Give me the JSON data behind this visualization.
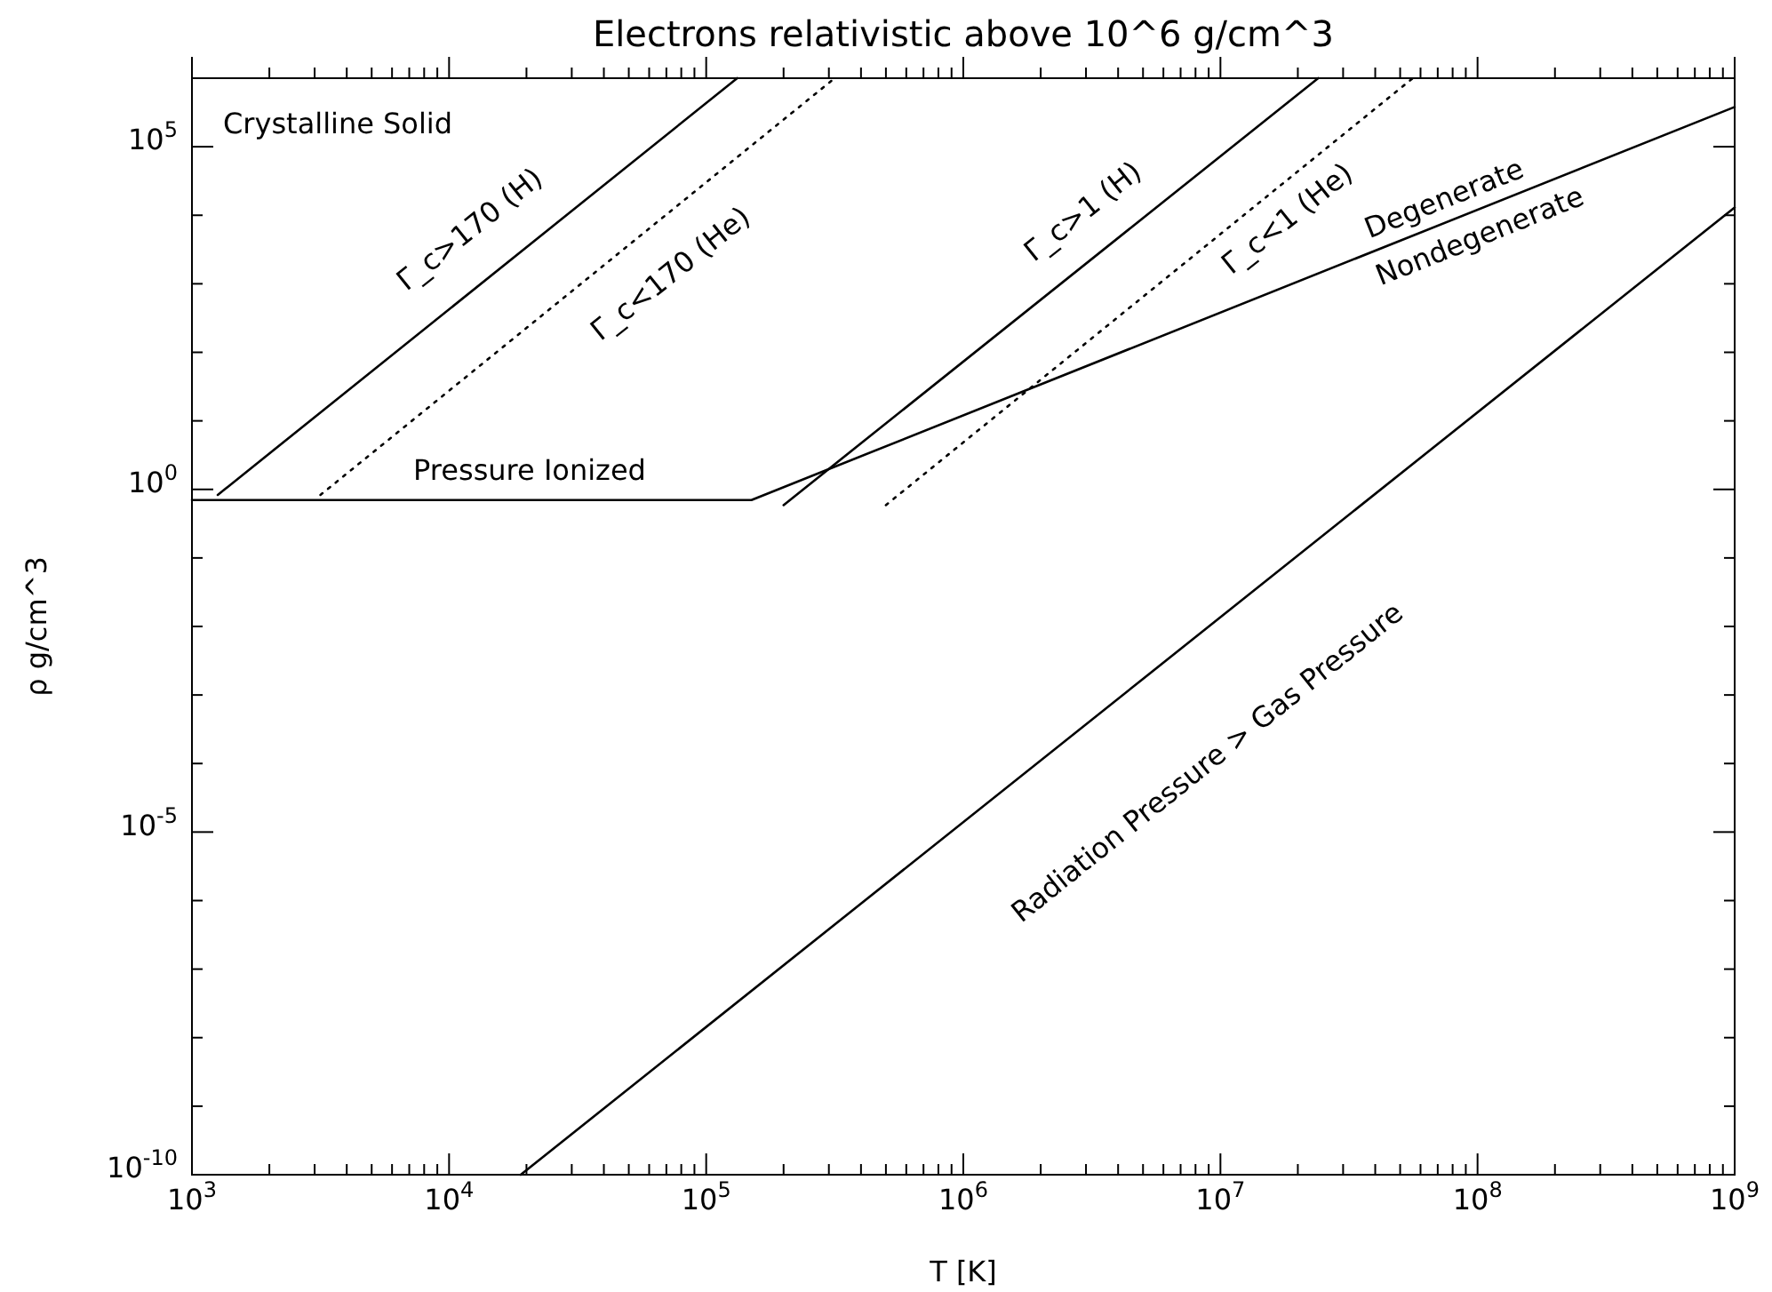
{
  "chart_data": {
    "type": "line",
    "title": "Electrons relativistic above 10^6 g/cm^3",
    "xlabel": "T [K]",
    "ylabel": "ρ g/cm^3",
    "log": "xy",
    "grid": false,
    "marker": "none",
    "xlim": [
      1000,
      1000000000
    ],
    "ylim": [
      1e-10,
      1000000
    ],
    "xticks": [
      {
        "value": 1000,
        "label": "10$^{3}$"
      },
      {
        "value": 2000,
        "label": null
      },
      {
        "value": 3000,
        "label": null
      },
      {
        "value": 4000,
        "label": null
      },
      {
        "value": 5000,
        "label": null
      },
      {
        "value": 6000,
        "label": null
      },
      {
        "value": 7000,
        "label": null
      },
      {
        "value": 8000,
        "label": null
      },
      {
        "value": 9000,
        "label": null
      },
      {
        "value": 10000,
        "label": "10$^{4}$"
      },
      {
        "value": 20000,
        "label": null
      },
      {
        "value": 30000,
        "label": null
      },
      {
        "value": 40000,
        "label": null
      },
      {
        "value": 50000,
        "label": null
      },
      {
        "value": 60000,
        "label": null
      },
      {
        "value": 70000,
        "label": null
      },
      {
        "value": 80000,
        "label": null
      },
      {
        "value": 90000,
        "label": null
      },
      {
        "value": 100000,
        "label": "10$^{5}$"
      },
      {
        "value": 200000,
        "label": null
      },
      {
        "value": 300000,
        "label": null
      },
      {
        "value": 400000,
        "label": null
      },
      {
        "value": 500000,
        "label": null
      },
      {
        "value": 600000,
        "label": null
      },
      {
        "value": 700000,
        "label": null
      },
      {
        "value": 800000,
        "label": null
      },
      {
        "value": 900000,
        "label": null
      },
      {
        "value": 1000000,
        "label": "10$^{6}$"
      },
      {
        "value": 2000000,
        "label": null
      },
      {
        "value": 3000000,
        "label": null
      },
      {
        "value": 4000000,
        "label": null
      },
      {
        "value": 5000000,
        "label": null
      },
      {
        "value": 6000000,
        "label": null
      },
      {
        "value": 7000000,
        "label": null
      },
      {
        "value": 8000000,
        "label": null
      },
      {
        "value": 9000000,
        "label": null
      },
      {
        "value": 10000000,
        "label": "10$^{7}$"
      },
      {
        "value": 20000000,
        "label": null
      },
      {
        "value": 30000000,
        "label": null
      },
      {
        "value": 40000000,
        "label": null
      },
      {
        "value": 50000000,
        "label": null
      },
      {
        "value": 60000000,
        "label": null
      },
      {
        "value": 70000000,
        "label": null
      },
      {
        "value": 80000000,
        "label": null
      },
      {
        "value": 90000000,
        "label": null
      },
      {
        "value": 100000000,
        "label": "10$^{8}$"
      },
      {
        "value": 200000000,
        "label": null
      },
      {
        "value": 300000000,
        "label": null
      },
      {
        "value": 400000000,
        "label": null
      },
      {
        "value": 500000000,
        "label": null
      },
      {
        "value": 600000000,
        "label": null
      },
      {
        "value": 700000000,
        "label": null
      },
      {
        "value": 800000000,
        "label": null
      },
      {
        "value": 900000000,
        "label": null
      },
      {
        "value": 1000000000,
        "label": "10$^{9}$"
      }
    ],
    "yticks": [
      {
        "value": 1e-10,
        "label": "10$^{-10}$"
      },
      {
        "value": 1e-09,
        "label": null
      },
      {
        "value": 1e-08,
        "label": null
      },
      {
        "value": 1e-07,
        "label": null
      },
      {
        "value": 1e-06,
        "label": null
      },
      {
        "value": 1e-05,
        "label": "10$^{-5}$"
      },
      {
        "value": 0.0001,
        "label": null
      },
      {
        "value": 0.001,
        "label": null
      },
      {
        "value": 0.01,
        "label": null
      },
      {
        "value": 0.1,
        "label": null
      },
      {
        "value": 1,
        "label": "10$^{0}$"
      },
      {
        "value": 10,
        "label": null
      },
      {
        "value": 100,
        "label": null
      },
      {
        "value": 1000,
        "label": null
      },
      {
        "value": 10000,
        "label": null
      },
      {
        "value": 100000,
        "label": "10$^{5}$"
      },
      {
        "value": 1000000,
        "label": null
      }
    ],
    "series": [
      {
        "color": "#000000",
        "line_style": "solid",
        "x": [
          1260,
          132000
        ],
        "values": [
          0.83,
          1000000
        ]
      },
      {
        "color": "#000000",
        "line_style": "dotted",
        "x": [
          3160,
          316000
        ],
        "values": [
          0.83,
          1000000
        ]
      },
      {
        "color": "#000000",
        "line_style": "solid",
        "x": [
          1000,
          150000,
          1000000000
        ],
        "values": [
          0.7,
          0.7,
          380000
        ]
      },
      {
        "color": "#000000",
        "line_style": "solid",
        "x": [
          200000,
          24000000
        ],
        "values": [
          0.59,
          1000000
        ]
      },
      {
        "color": "#000000",
        "line_style": "dotted",
        "x": [
          500000,
          56000000
        ],
        "values": [
          0.59,
          1000000
        ]
      },
      {
        "color": "#000000",
        "line_style": "solid",
        "x": [
          19000,
          1000000000
        ],
        "values": [
          1e-10,
          13000
        ]
      }
    ],
    "annotations": [
      "Crystalline Solid",
      "Γ_c>170 (H)",
      "Γ_c<170 (He)",
      "Pressure Ionized",
      "Γ_c>1 (H)",
      "Γ_c<1 (He)",
      "Degenerate",
      "Nondegenerate",
      "Radiation Pressure > Gas Pressure"
    ]
  }
}
